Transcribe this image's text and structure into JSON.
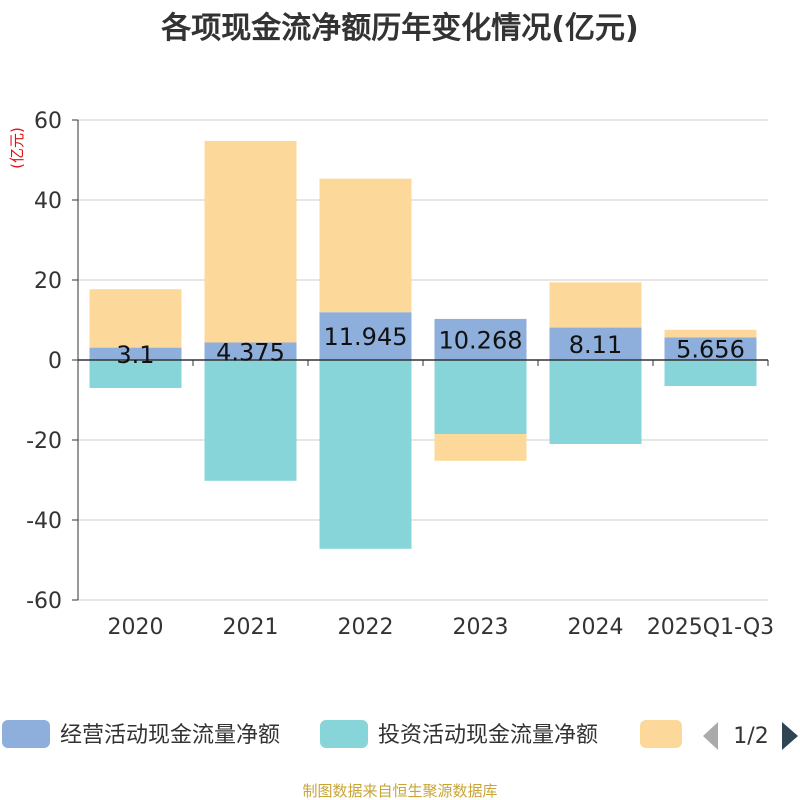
{
  "chart_data": {
    "type": "bar",
    "stacked": true,
    "title": "各项现金流净额历年变化情况(亿元)",
    "ylabel": "(亿元)",
    "ylim": [
      -60,
      60
    ],
    "yticks": [
      60,
      40,
      20,
      0,
      -20,
      -40,
      -60
    ],
    "categories": [
      "2020",
      "2021",
      "2022",
      "2023",
      "2024",
      "2025Q1-Q3"
    ],
    "series": [
      {
        "name": "经营活动现金流量净额",
        "color": "#8eaedb",
        "values": [
          3.1,
          4.375,
          11.945,
          10.268,
          8.11,
          5.656
        ],
        "labels": [
          "3.1",
          "4.375",
          "11.945",
          "10.268",
          "8.11",
          "5.656"
        ]
      },
      {
        "name": "投资活动现金流量净额",
        "color": "#88d5d9",
        "values": [
          -7.0,
          -30.2,
          -47.2,
          -18.5,
          -21.0,
          -6.5
        ]
      },
      {
        "name": "",
        "color": "#fdd89b",
        "values": [
          14.6,
          50.4,
          33.4,
          -6.7,
          11.3,
          1.9
        ]
      }
    ]
  },
  "legend": {
    "page": "1/2"
  },
  "footer": {
    "source": "制图数据来自恒生聚源数据库"
  }
}
